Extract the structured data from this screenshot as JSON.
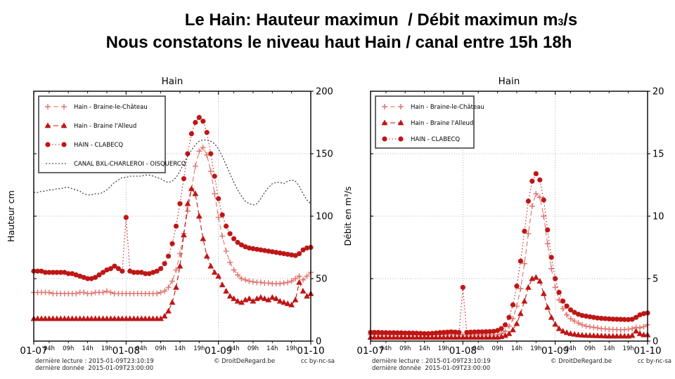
{
  "title": {
    "line1a": "Le Hain: Hauteur maximun  / Débit maximun m",
    "line1b": "3",
    "line1c": "/s",
    "line2": "Nous constatons le niveau haut Hain / canal entre 15h 18h"
  },
  "footer": {
    "lecture": "dernière lecture : 2015-01-09T23:10:19",
    "donnee": "dernière donnée  2015-01-09T23:00:00",
    "copyright": "© DroitDeRegard.be",
    "license": "cc by-nc-sa"
  },
  "colors": {
    "dark_red": "#bf1616",
    "light_red": "#e0706a",
    "canal_black": "#222222",
    "grid": "#999999",
    "axis": "#000000",
    "legend_border": "#444444",
    "background": "#ffffff"
  },
  "chart_data": [
    {
      "type": "line",
      "title": "Hain",
      "ylabel": "Hauteur cm",
      "ylim": [
        0,
        200
      ],
      "yticks": [
        0,
        50,
        100,
        150,
        200
      ],
      "xlim": [
        0,
        72
      ],
      "x_unit": "hours from 2015-01-07 00:00, hourly points",
      "grid": true,
      "legend_position": "upper-left",
      "x_major_ticks": [
        {
          "h": 0,
          "label": "01-07"
        },
        {
          "h": 24,
          "label": "01-08"
        },
        {
          "h": 48,
          "label": "01-09"
        },
        {
          "h": 72,
          "label": "01-10"
        }
      ],
      "x_minor_ticks": [
        {
          "h": 4,
          "label": "04h"
        },
        {
          "h": 9,
          "label": "09h"
        },
        {
          "h": 14,
          "label": "14h"
        },
        {
          "h": 19,
          "label": "19h"
        },
        {
          "h": 28,
          "label": "04h"
        },
        {
          "h": 33,
          "label": "09h"
        },
        {
          "h": 38,
          "label": "14h"
        },
        {
          "h": 43,
          "label": "19h"
        },
        {
          "h": 52,
          "label": "04h"
        },
        {
          "h": 57,
          "label": "09h"
        },
        {
          "h": 62,
          "label": "14h"
        },
        {
          "h": 67,
          "label": "19h"
        }
      ],
      "series": [
        {
          "name": "Hain - Braine-le-Château",
          "marker": "plus",
          "color": "#e0706a",
          "dash": "7 4",
          "values": [
            39,
            39,
            39,
            39,
            39,
            38,
            38,
            38,
            38,
            38,
            38,
            38,
            39,
            39,
            38,
            38,
            39,
            39,
            39,
            40,
            39,
            38,
            38,
            38,
            38,
            38,
            38,
            38,
            38,
            38,
            38,
            38,
            38,
            39,
            40,
            43,
            48,
            57,
            70,
            86,
            104,
            122,
            140,
            152,
            155,
            149,
            136,
            118,
            99,
            84,
            72,
            63,
            57,
            53,
            50,
            49,
            48,
            47.5,
            47,
            47,
            46.5,
            46.5,
            46,
            46,
            46,
            46.5,
            47,
            48,
            50,
            52,
            49,
            52,
            55
          ]
        },
        {
          "name": "Hain - Braine l'Alleud",
          "marker": "triangle",
          "color": "#bf1616",
          "dash": "7 4",
          "values": [
            18,
            18,
            18,
            18,
            18,
            18,
            18,
            18,
            18,
            18,
            18,
            18,
            18,
            18,
            18,
            18,
            18,
            18,
            18,
            18,
            18,
            18,
            18,
            18,
            18,
            18,
            18,
            18,
            18,
            18,
            18,
            18,
            18,
            18,
            20,
            24,
            31,
            43,
            60,
            85,
            110,
            122,
            118,
            100,
            82,
            68,
            60,
            55,
            52,
            45,
            40,
            36,
            34,
            32,
            31,
            33,
            34,
            32,
            34,
            35,
            34,
            33,
            35,
            34,
            32,
            31,
            30,
            29,
            33,
            47,
            40,
            36,
            38
          ]
        },
        {
          "name": "HAIN - CLABECQ",
          "marker": "circle",
          "color": "#bf1616",
          "dash": "1.5 3",
          "values": [
            56,
            56,
            56,
            55,
            55,
            55,
            55,
            55,
            55,
            54,
            54,
            53,
            52,
            51,
            50,
            50,
            51,
            53,
            55,
            57,
            58,
            60,
            58,
            56,
            99,
            56,
            55,
            55,
            55,
            54,
            54,
            55,
            56,
            58,
            62,
            68,
            78,
            92,
            110,
            130,
            150,
            166,
            175,
            179,
            176,
            167,
            150,
            132,
            114,
            101,
            92,
            86,
            82,
            79,
            77,
            75.5,
            74.5,
            74,
            73.5,
            73,
            72.5,
            72,
            71.5,
            71,
            70.5,
            70,
            69.5,
            69,
            68.5,
            70,
            73,
            74.5,
            75
          ]
        },
        {
          "name": "CANAL BXL-CHARLEROI - OISQUERCQ",
          "marker": "none",
          "color": "#222222",
          "dash": "2 2.5",
          "values": [
            119,
            119,
            120,
            120,
            121,
            121,
            122,
            122,
            123,
            123,
            122,
            121,
            120,
            118,
            117,
            117,
            118,
            118,
            119,
            121,
            124,
            127,
            129,
            131,
            131,
            132,
            132,
            132,
            132,
            133,
            133,
            132,
            131,
            130,
            128,
            127,
            128,
            131,
            136,
            142,
            148,
            153,
            157,
            160,
            161,
            161,
            160,
            158,
            154,
            148,
            141,
            134,
            127,
            121,
            116,
            112,
            110,
            109,
            110,
            114,
            119,
            123,
            126,
            127,
            127,
            126,
            128,
            129,
            128,
            124,
            118,
            113,
            110
          ]
        }
      ]
    },
    {
      "type": "line",
      "title": "Hain",
      "ylabel": "Débit en m³/s",
      "ylim": [
        0,
        20
      ],
      "yticks": [
        0,
        5,
        10,
        15,
        20
      ],
      "xlim": [
        0,
        72
      ],
      "x_unit": "hours from 2015-01-07 00:00, hourly points",
      "grid": true,
      "legend_position": "upper-left",
      "x_major_ticks": [
        {
          "h": 0,
          "label": "01-07"
        },
        {
          "h": 24,
          "label": "01-08"
        },
        {
          "h": 48,
          "label": "01-09"
        },
        {
          "h": 72,
          "label": "01-10"
        }
      ],
      "x_minor_ticks": [
        {
          "h": 4,
          "label": "04h"
        },
        {
          "h": 9,
          "label": "09h"
        },
        {
          "h": 14,
          "label": "14h"
        },
        {
          "h": 19,
          "label": "19h"
        },
        {
          "h": 28,
          "label": "04h"
        },
        {
          "h": 33,
          "label": "09h"
        },
        {
          "h": 38,
          "label": "14h"
        },
        {
          "h": 43,
          "label": "19h"
        },
        {
          "h": 52,
          "label": "04h"
        },
        {
          "h": 57,
          "label": "09h"
        },
        {
          "h": 62,
          "label": "14h"
        },
        {
          "h": 67,
          "label": "19h"
        }
      ],
      "series": [
        {
          "name": "Hain - Braine-le-Château",
          "marker": "plus",
          "color": "#e0706a",
          "dash": "7 4",
          "values": [
            0.5,
            0.5,
            0.5,
            0.5,
            0.5,
            0.5,
            0.5,
            0.5,
            0.5,
            0.5,
            0.5,
            0.5,
            0.5,
            0.5,
            0.5,
            0.5,
            0.5,
            0.5,
            0.5,
            0.5,
            0.5,
            0.5,
            0.5,
            0.5,
            0.5,
            0.5,
            0.5,
            0.5,
            0.5,
            0.5,
            0.5,
            0.5,
            0.5,
            0.5,
            0.6,
            0.8,
            1.2,
            1.8,
            2.8,
            4.2,
            6.2,
            8.6,
            10.8,
            11.8,
            11.5,
            10,
            7.8,
            5.8,
            4.3,
            3.3,
            2.6,
            2.1,
            1.8,
            1.6,
            1.45,
            1.3,
            1.2,
            1.15,
            1.1,
            1.05,
            1,
            0.98,
            0.95,
            0.93,
            0.92,
            0.9,
            0.92,
            0.95,
            1,
            1.1,
            1.05,
            1.15,
            1.3
          ]
        },
        {
          "name": "Hain - Braine l'Alleud",
          "marker": "triangle",
          "color": "#bf1616",
          "dash": "7 4",
          "values": [
            0.3,
            0.3,
            0.3,
            0.3,
            0.3,
            0.3,
            0.3,
            0.3,
            0.3,
            0.3,
            0.3,
            0.3,
            0.3,
            0.3,
            0.3,
            0.3,
            0.3,
            0.3,
            0.3,
            0.3,
            0.3,
            0.3,
            0.3,
            0.3,
            0.3,
            0.3,
            0.3,
            0.3,
            0.3,
            0.3,
            0.3,
            0.3,
            0.3,
            0.3,
            0.35,
            0.45,
            0.6,
            0.9,
            1.4,
            2.2,
            3.2,
            4.3,
            5,
            5.1,
            4.8,
            3.8,
            2.7,
            1.9,
            1.35,
            1,
            0.8,
            0.68,
            0.6,
            0.55,
            0.5,
            0.48,
            0.46,
            0.45,
            0.44,
            0.43,
            0.42,
            0.41,
            0.4,
            0.4,
            0.4,
            0.4,
            0.4,
            0.4,
            0.45,
            0.8,
            0.6,
            0.5,
            0.5
          ]
        },
        {
          "name": "HAIN - CLABECQ",
          "marker": "circle",
          "color": "#bf1616",
          "dash": "1.5 3",
          "values": [
            0.7,
            0.7,
            0.7,
            0.68,
            0.68,
            0.67,
            0.67,
            0.66,
            0.66,
            0.65,
            0.65,
            0.64,
            0.63,
            0.62,
            0.6,
            0.6,
            0.62,
            0.65,
            0.68,
            0.7,
            0.72,
            0.74,
            0.72,
            0.7,
            4.3,
            0.7,
            0.72,
            0.73,
            0.74,
            0.74,
            0.75,
            0.76,
            0.78,
            0.85,
            1,
            1.3,
            1.9,
            2.9,
            4.4,
            6.4,
            8.8,
            11.2,
            12.8,
            13.4,
            12.9,
            11.3,
            8.9,
            6.7,
            5,
            3.9,
            3.2,
            2.8,
            2.5,
            2.3,
            2.15,
            2.05,
            2,
            1.95,
            1.9,
            1.85,
            1.82,
            1.8,
            1.78,
            1.76,
            1.75,
            1.74,
            1.73,
            1.72,
            1.75,
            1.9,
            2.1,
            2.2,
            2.25
          ]
        }
      ]
    }
  ]
}
